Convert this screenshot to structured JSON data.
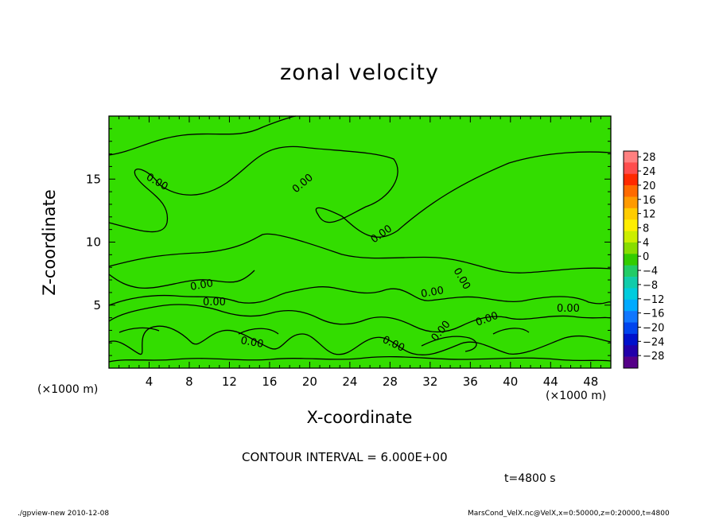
{
  "chart_data": {
    "type": "heatmap",
    "title": "zonal velocity",
    "xlabel": "X-coordinate",
    "ylabel": "Z-coordinate",
    "x_unit": "(×1000 m)",
    "y_unit": "(×1000 m)",
    "xlim": [
      0,
      50
    ],
    "ylim": [
      0,
      20
    ],
    "x_ticks": [
      4,
      8,
      12,
      16,
      20,
      24,
      28,
      32,
      36,
      40,
      44,
      48
    ],
    "y_ticks": [
      5,
      10,
      15
    ],
    "contour_label": "0.00",
    "contour_interval_text": "CONTOUR INTERVAL = 6.000E+00",
    "time_text": "t=4800 s",
    "colorbar": {
      "ticks": [
        "28",
        "24",
        "20",
        "16",
        "12",
        "8",
        "4",
        "0",
        "−4",
        "−8",
        "−12",
        "−16",
        "−20",
        "−24",
        "−28"
      ],
      "colors": [
        "#ff8080",
        "#ff4d4d",
        "#ff2a00",
        "#ff6a00",
        "#ff9a00",
        "#ffcc00",
        "#ffee00",
        "#ccee00",
        "#88dd00",
        "#33cc00",
        "#22cc66",
        "#11ccaa",
        "#00ccdd",
        "#00aaff",
        "#1177ff",
        "#0044ee",
        "#0011cc",
        "#2200aa",
        "#550088"
      ]
    },
    "field_color": "#33dd00"
  },
  "footer": {
    "left": "./gpview-new  2010-12-08",
    "right": "MarsCond_VelX.nc@VelX,x=0:50000,z=0:20000,t=4800"
  }
}
